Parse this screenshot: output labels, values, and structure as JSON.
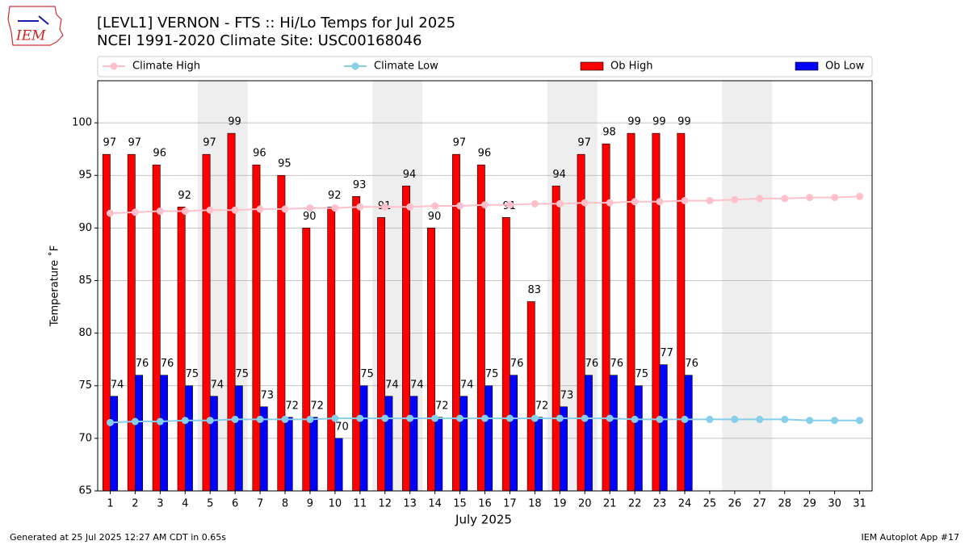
{
  "chart_data": {
    "type": "bar",
    "logo_text": "IEM",
    "title": "[LEVL1] VERNON - FTS :: Hi/Lo Temps for Jul 2025",
    "subtitle": "NCEI 1991-2020 Climate Site: USC00168046",
    "xlabel": "July 2025",
    "ylabel": "Temperature ˚F",
    "footer_left": "Generated at 25 Jul 2025 12:27 AM CDT in 0.65s",
    "footer_right": "IEM Autoplot App #17",
    "x": [
      1,
      2,
      3,
      4,
      5,
      6,
      7,
      8,
      9,
      10,
      11,
      12,
      13,
      14,
      15,
      16,
      17,
      18,
      19,
      20,
      21,
      22,
      23,
      24,
      25,
      26,
      27,
      28,
      29,
      30,
      31
    ],
    "xlim": [
      0.5,
      31.5
    ],
    "xticks": [
      1,
      2,
      3,
      4,
      5,
      6,
      7,
      8,
      9,
      10,
      11,
      12,
      13,
      14,
      15,
      16,
      17,
      18,
      19,
      20,
      21,
      22,
      23,
      24,
      25,
      26,
      27,
      28,
      29,
      30,
      31
    ],
    "ylim": [
      65,
      104
    ],
    "yticks": [
      65,
      70,
      75,
      80,
      85,
      90,
      95,
      100
    ],
    "grid": true,
    "shaded_x": [
      [
        4.5,
        6.5
      ],
      [
        11.5,
        13.5
      ],
      [
        18.5,
        20.5
      ],
      [
        25.5,
        27.5
      ]
    ],
    "series": [
      {
        "name": "Climate High",
        "type": "line",
        "color": "#ffc0cb",
        "values": [
          91.4,
          91.5,
          91.6,
          91.6,
          91.7,
          91.7,
          91.8,
          91.8,
          91.9,
          91.9,
          92.0,
          92.0,
          92.0,
          92.1,
          92.1,
          92.2,
          92.2,
          92.3,
          92.3,
          92.4,
          92.4,
          92.5,
          92.5,
          92.6,
          92.6,
          92.7,
          92.8,
          92.8,
          92.9,
          92.9,
          93.0
        ]
      },
      {
        "name": "Climate Low",
        "type": "line",
        "color": "#87ceeb",
        "values": [
          71.5,
          71.6,
          71.6,
          71.7,
          71.7,
          71.8,
          71.8,
          71.8,
          71.8,
          71.9,
          71.9,
          71.9,
          71.9,
          71.9,
          71.9,
          71.9,
          71.9,
          71.9,
          71.9,
          71.9,
          71.9,
          71.8,
          71.8,
          71.8,
          71.8,
          71.8,
          71.8,
          71.8,
          71.7,
          71.7,
          71.7
        ]
      },
      {
        "name": "Ob High",
        "type": "bar",
        "color": "#ff0000",
        "values": [
          97,
          97,
          96,
          92,
          97,
          99,
          96,
          95,
          90,
          92,
          93,
          91,
          94,
          90,
          97,
          96,
          91,
          83,
          94,
          97,
          98,
          99,
          99,
          99,
          null,
          null,
          null,
          null,
          null,
          null,
          null
        ]
      },
      {
        "name": "Ob Low",
        "type": "bar",
        "color": "#0000ff",
        "values": [
          74,
          76,
          76,
          75,
          74,
          75,
          73,
          72,
          72,
          70,
          75,
          74,
          74,
          72,
          74,
          75,
          76,
          72,
          73,
          76,
          76,
          75,
          77,
          76,
          null,
          null,
          null,
          null,
          null,
          null,
          null
        ]
      }
    ]
  }
}
